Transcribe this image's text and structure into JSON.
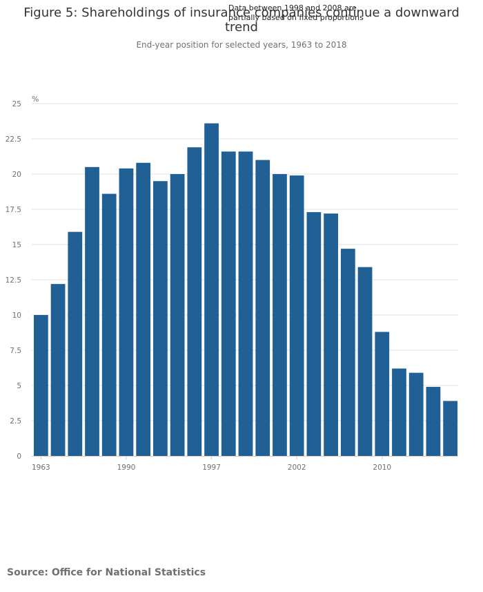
{
  "chart_data": {
    "type": "bar",
    "title_lines": [
      "Figure 5: Shareholdings of insurance companies continue a downward",
      "trend"
    ],
    "subtitle": "End-year position for selected years, 1963 to 2018",
    "annotation_lines": [
      "Data between 1998 and 2008 are",
      "partially based on fixed proportions"
    ],
    "ylabel": "%",
    "ylim": [
      0,
      25
    ],
    "yticks": [
      0,
      2.5,
      5,
      7.5,
      10,
      12.5,
      15,
      17.5,
      20,
      22.5,
      25
    ],
    "ytick_labels": [
      "0",
      "2.5",
      "5",
      "7.5",
      "10",
      "12.5",
      "15",
      "17.5",
      "20",
      "22.5",
      "25"
    ],
    "xtick_labels": [
      {
        "category_index": 0,
        "label": "1963"
      },
      {
        "category_index": 5,
        "label": "1990"
      },
      {
        "category_index": 10,
        "label": "1997"
      },
      {
        "category_index": 15,
        "label": "2002"
      },
      {
        "category_index": 20,
        "label": "2010"
      }
    ],
    "values": [
      10.0,
      12.2,
      15.9,
      20.5,
      18.6,
      20.4,
      20.8,
      19.5,
      20.0,
      21.9,
      23.6,
      21.6,
      21.6,
      21.0,
      20.0,
      19.9,
      17.3,
      17.2,
      14.7,
      13.4,
      8.8,
      6.2,
      5.9,
      4.9,
      3.9
    ],
    "grid": true,
    "colors": {
      "bar": "#206095",
      "grid": "#e0e0e0",
      "axis": "#cccccc"
    }
  },
  "source": "Source: Office for National Statistics"
}
